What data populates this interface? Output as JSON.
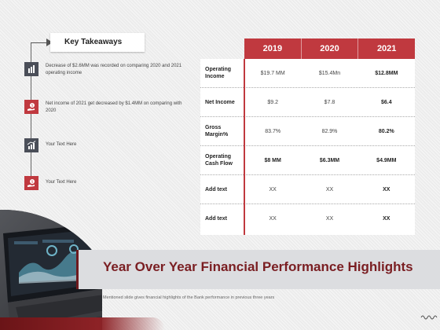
{
  "takeaways": {
    "title": "Key Takeaways",
    "items": [
      {
        "icon": "bar-chart-icon",
        "style": "dark",
        "text": "Decrease of $2.6MM was recorded on comparing 2020 and 2021 operating income"
      },
      {
        "icon": "money-hand-icon",
        "style": "red",
        "text": "Net income of 2021 get decreased by $1.4MM on comparing with 2020"
      },
      {
        "icon": "growth-chart-icon",
        "style": "dark",
        "text": "Your Text Here"
      },
      {
        "icon": "money-hand-icon",
        "style": "red",
        "text": "Your Text Here"
      }
    ]
  },
  "table": {
    "years": [
      "2019",
      "2020",
      "2021"
    ],
    "rows": [
      {
        "label": "Operating Income",
        "values": [
          "$19.7 MM",
          "$15.4Mn",
          "$12.8MM"
        ]
      },
      {
        "label": "Net Income",
        "values": [
          "$9.2",
          "$7.8",
          "$6.4"
        ]
      },
      {
        "label": "Gross Margin%",
        "values": [
          "83.7%",
          "82.9%",
          "80.2%"
        ]
      },
      {
        "label": "Operating Cash Flow",
        "values": [
          "$8 MM",
          "$6.3MM",
          "$4.9MM"
        ]
      },
      {
        "label": "Add text",
        "values": [
          "XX",
          "XX",
          "XX"
        ]
      },
      {
        "label": "Add text",
        "values": [
          "XX",
          "XX",
          "XX"
        ]
      }
    ]
  },
  "banner": {
    "title": "Year Over Year Financial Performance Highlights",
    "subtitle": "Mentioned slide gives financial highlights of the Bank performance in previous three years"
  },
  "colors": {
    "accent_red": "#c0393f",
    "dark_red": "#7a1e22",
    "icon_dark": "#4a4e58"
  }
}
